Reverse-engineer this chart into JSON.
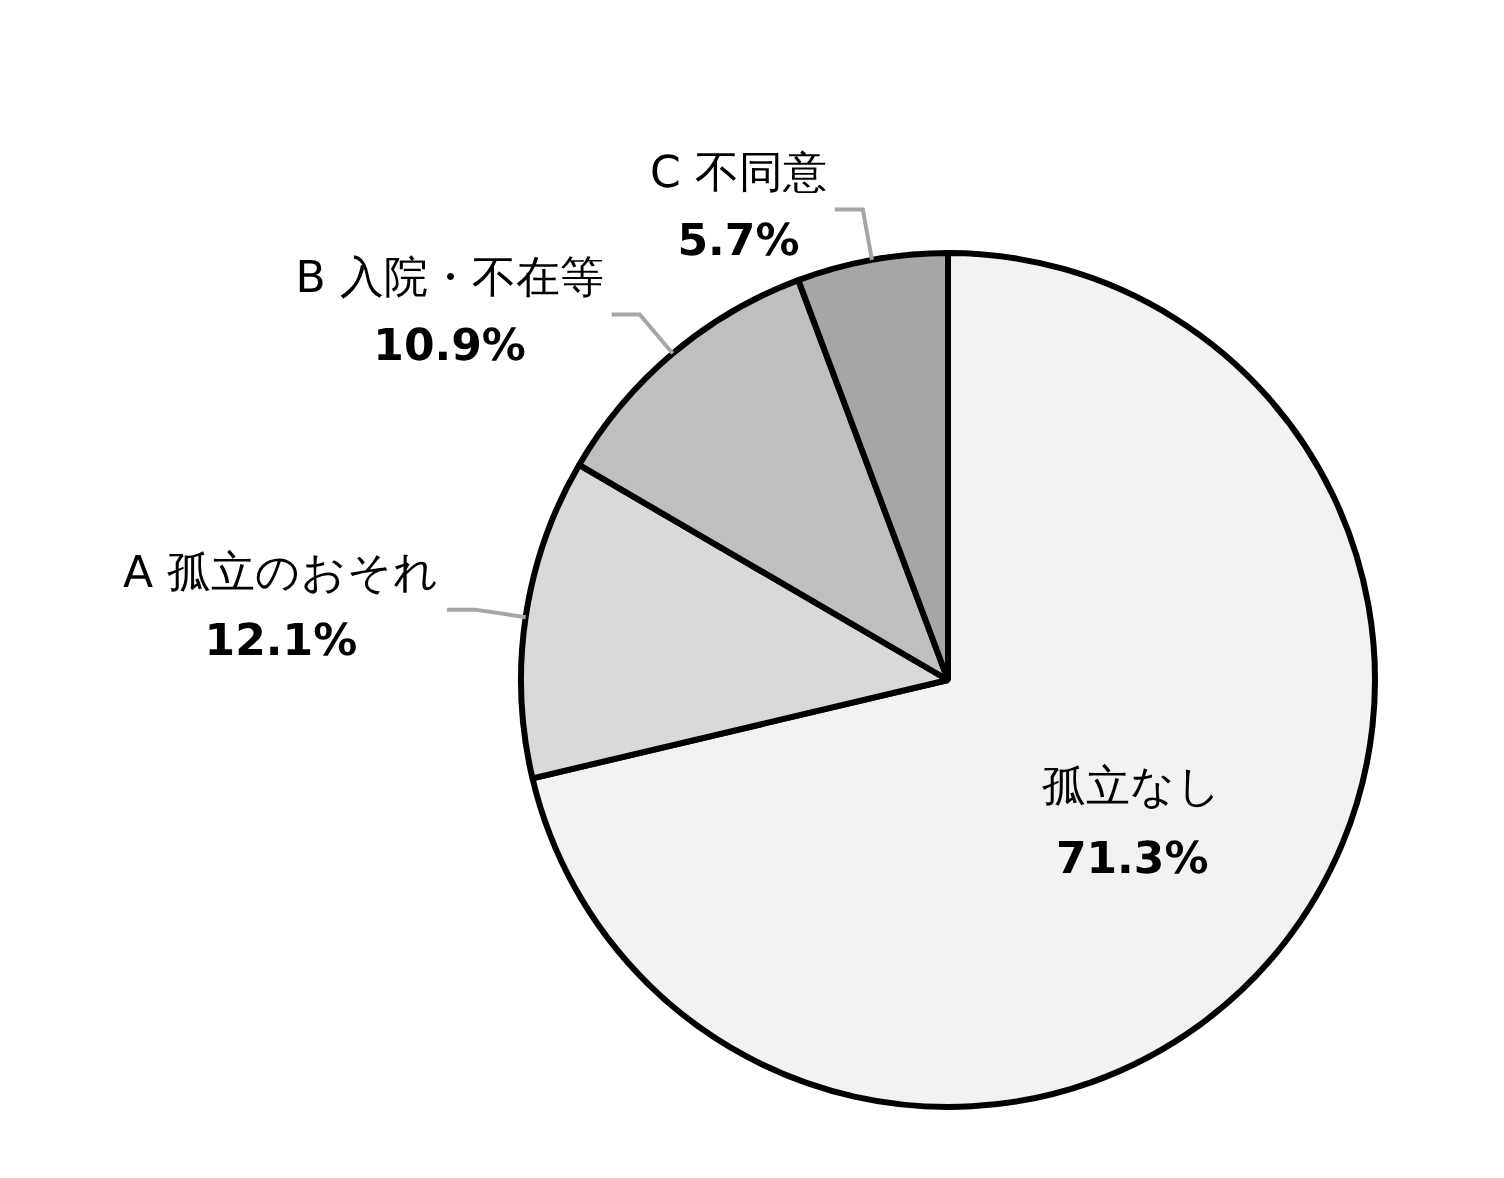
{
  "chart_data": {
    "type": "pie",
    "categories": [
      "孤立なし",
      "A 孤立のおそれ",
      "B 入院・不在等",
      "C 不同意"
    ],
    "values": [
      71.3,
      12.1,
      10.9,
      5.7
    ],
    "value_labels": [
      "71.3%",
      "12.1%",
      "10.9%",
      "5.7%"
    ],
    "colors": [
      "#f2f2f2",
      "#d9d9d9",
      "#bfbfbf",
      "#a6a6a6"
    ],
    "legend": false
  }
}
